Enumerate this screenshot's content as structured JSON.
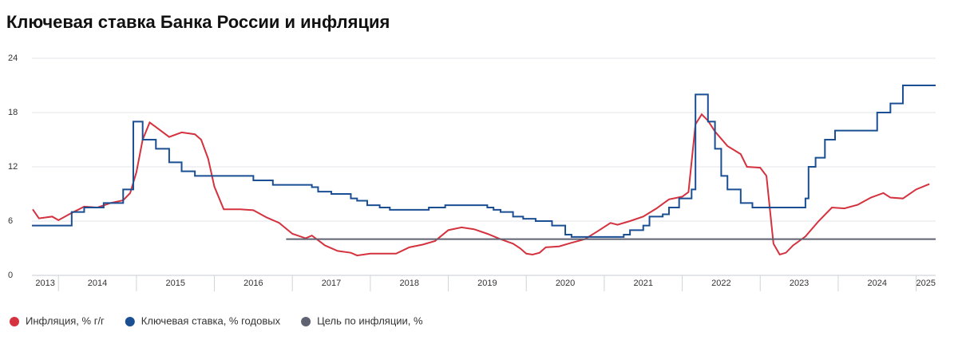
{
  "chart_data": {
    "type": "line",
    "title": "Ключевая ставка Банка России и инфляция",
    "xlim": [
      2013.66,
      2025.25
    ],
    "xticks": [
      {
        "value": 2013,
        "label": "2013"
      },
      {
        "value": 2014,
        "label": "2014"
      },
      {
        "value": 2015,
        "label": "2015"
      },
      {
        "value": 2016,
        "label": "2016"
      },
      {
        "value": 2017,
        "label": "2017"
      },
      {
        "value": 2018,
        "label": "2018"
      },
      {
        "value": 2019,
        "label": "2019"
      },
      {
        "value": 2020,
        "label": "2020"
      },
      {
        "value": 2021,
        "label": "2021"
      },
      {
        "value": 2022,
        "label": "2022"
      },
      {
        "value": 2023,
        "label": "2023"
      },
      {
        "value": 2024,
        "label": "2024"
      },
      {
        "value": 2025,
        "label": "2025"
      }
    ],
    "ylim": [
      0,
      24
    ],
    "yticks": [
      0,
      6,
      12,
      18,
      24
    ],
    "grid": true,
    "legend": "bottom",
    "series": [
      {
        "name": "Инфляция, % г/г",
        "color": "#d4323e",
        "x": [
          2013.67,
          2013.75,
          2013.92,
          2014.0,
          2014.17,
          2014.33,
          2014.5,
          2014.67,
          2014.83,
          2014.92,
          2015.0,
          2015.08,
          2015.17,
          2015.25,
          2015.42,
          2015.58,
          2015.75,
          2015.83,
          2015.92,
          2016.0,
          2016.12,
          2016.33,
          2016.5,
          2016.67,
          2016.83,
          2017.0,
          2017.17,
          2017.25,
          2017.42,
          2017.58,
          2017.75,
          2017.83,
          2018.0,
          2018.17,
          2018.33,
          2018.5,
          2018.67,
          2018.83,
          2019.0,
          2019.17,
          2019.33,
          2019.5,
          2019.67,
          2019.83,
          2019.92,
          2020.0,
          2020.08,
          2020.17,
          2020.25,
          2020.42,
          2020.58,
          2020.75,
          2020.92,
          2021.08,
          2021.17,
          2021.33,
          2021.5,
          2021.67,
          2021.83,
          2022.0,
          2022.08,
          2022.17,
          2022.25,
          2022.33,
          2022.42,
          2022.58,
          2022.75,
          2022.83,
          2023.0,
          2023.08,
          2023.17,
          2023.25,
          2023.33,
          2023.42,
          2023.58,
          2023.75,
          2023.92,
          2024.08,
          2024.25,
          2024.42,
          2024.58,
          2024.67,
          2024.83,
          2025.0,
          2025.17
        ],
        "values": [
          7.3,
          6.3,
          6.5,
          6.1,
          6.9,
          7.6,
          7.5,
          8.0,
          8.3,
          9.1,
          11.4,
          15.0,
          16.9,
          16.4,
          15.3,
          15.8,
          15.6,
          15.0,
          12.9,
          9.8,
          7.3,
          7.3,
          7.2,
          6.4,
          5.8,
          4.6,
          4.1,
          4.4,
          3.3,
          2.7,
          2.5,
          2.2,
          2.4,
          2.4,
          2.4,
          3.1,
          3.4,
          3.8,
          5.0,
          5.3,
          5.1,
          4.6,
          4.0,
          3.5,
          3.0,
          2.4,
          2.3,
          2.5,
          3.1,
          3.2,
          3.6,
          4.0,
          4.9,
          5.8,
          5.6,
          6.0,
          6.5,
          7.4,
          8.4,
          8.7,
          9.2,
          16.7,
          17.8,
          17.1,
          15.9,
          14.3,
          13.4,
          12.0,
          11.9,
          11.0,
          3.5,
          2.3,
          2.5,
          3.3,
          4.3,
          6.0,
          7.5,
          7.4,
          7.8,
          8.6,
          9.1,
          8.6,
          8.5,
          9.5,
          10.1
        ]
      },
      {
        "name": "Ключевая ставка, % годовых",
        "color": "#1b4f93",
        "step": true,
        "x": [
          2013.66,
          2014.17,
          2014.33,
          2014.58,
          2014.83,
          2014.96,
          2015.08,
          2015.25,
          2015.42,
          2015.58,
          2015.75,
          2016.5,
          2016.75,
          2017.25,
          2017.33,
          2017.5,
          2017.75,
          2017.83,
          2017.96,
          2018.12,
          2018.25,
          2018.75,
          2018.96,
          2019.5,
          2019.58,
          2019.67,
          2019.83,
          2019.96,
          2020.12,
          2020.33,
          2020.5,
          2020.58,
          2021.25,
          2021.33,
          2021.5,
          2021.58,
          2021.75,
          2021.83,
          2021.96,
          2022.12,
          2022.17,
          2022.33,
          2022.42,
          2022.5,
          2022.58,
          2022.75,
          2022.9,
          2023.58,
          2023.62,
          2023.71,
          2023.83,
          2023.96,
          2024.5,
          2024.67,
          2024.83,
          2025.25
        ],
        "values": [
          5.5,
          7,
          7.5,
          8,
          9.5,
          17,
          15,
          14,
          12.5,
          11.5,
          11,
          10.5,
          10,
          9.75,
          9.25,
          9,
          8.5,
          8.25,
          7.75,
          7.5,
          7.25,
          7.5,
          7.75,
          7.5,
          7.25,
          7,
          6.5,
          6.25,
          6,
          5.5,
          4.5,
          4.25,
          4.5,
          5,
          5.5,
          6.5,
          6.75,
          7.5,
          8.5,
          9.5,
          20,
          17,
          14,
          11,
          9.5,
          8,
          7.5,
          8.5,
          12,
          13,
          15,
          16,
          18,
          19,
          21,
          21
        ]
      },
      {
        "name": "Цель по инфляции, %",
        "color": "#5f6270",
        "x": [
          2016.92,
          2025.25
        ],
        "values": [
          4,
          4
        ]
      }
    ]
  }
}
